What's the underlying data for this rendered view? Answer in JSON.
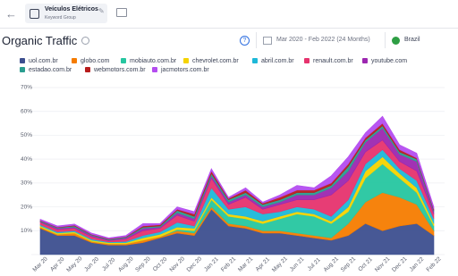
{
  "header": {
    "group_title": "Veículos Elétricos",
    "group_type": "Keyword Group"
  },
  "toolbar": {
    "date_range": "Mar 2020 - Feb 2022 (24 Months)",
    "country": "Brazil"
  },
  "chart_data": {
    "type": "stacked-area",
    "title": "Organic Traffic",
    "categories": [
      "Mar 20",
      "Apr 20",
      "May 20",
      "Jun 20",
      "Jul 20",
      "Aug 20",
      "Sep 20",
      "Oct 20",
      "Nov 20",
      "Dec 20",
      "Jan 21",
      "Feb 21",
      "Mar 21",
      "Apr 21",
      "May 21",
      "Jun 21",
      "Jul 21",
      "Aug 21",
      "Sep 21",
      "Oct 21",
      "Nov 21",
      "Dec 21",
      "Jan 22",
      "Feb 22"
    ],
    "ylim": [
      0,
      70
    ],
    "yticks": [
      {
        "value": 10,
        "label": "10%"
      },
      {
        "value": 20,
        "label": "20%"
      },
      {
        "value": 30,
        "label": "30%"
      },
      {
        "value": 40,
        "label": "40%"
      },
      {
        "value": 50,
        "label": "50%"
      },
      {
        "value": 60,
        "label": "60%"
      },
      {
        "value": 70,
        "label": "70%"
      }
    ],
    "grid": true,
    "series": [
      {
        "name": "uol.com.br",
        "color": "#3d4f8f",
        "values": [
          11,
          8,
          8,
          5,
          4,
          4,
          5,
          7,
          9,
          8,
          19,
          12,
          11,
          9,
          9,
          8,
          7,
          6,
          8,
          13,
          10,
          12,
          13,
          8
        ]
      },
      {
        "name": "globo.com",
        "color": "#f57c00",
        "values": [
          0.5,
          0.5,
          1,
          0.5,
          0.5,
          0.5,
          1,
          0.5,
          1,
          1,
          1,
          1,
          1,
          1,
          1,
          1,
          1,
          1,
          5,
          9,
          16,
          12,
          8,
          2
        ]
      },
      {
        "name": "mobiauto.com.br",
        "color": "#26c6a0",
        "values": [
          0,
          0,
          0,
          0,
          0,
          0,
          0,
          0,
          0.5,
          1,
          3,
          3,
          3,
          3,
          5,
          8,
          8,
          6,
          5,
          10,
          12,
          8,
          5,
          2
        ]
      },
      {
        "name": "chevrolet.com.br",
        "color": "#f5d300",
        "values": [
          0.5,
          0.5,
          0.5,
          0.5,
          0.5,
          0.5,
          1,
          1,
          1,
          1,
          1,
          1,
          1,
          1,
          1,
          1,
          1,
          1,
          2,
          3,
          3,
          2,
          2,
          1
        ]
      },
      {
        "name": "abril.com.br",
        "color": "#1eb8d8",
        "values": [
          0.5,
          0.5,
          0.5,
          0.5,
          0.3,
          0.5,
          1,
          1,
          2,
          1,
          4,
          2,
          4,
          3,
          2,
          2,
          2,
          2,
          3,
          3,
          3,
          2,
          3,
          2
        ]
      },
      {
        "name": "renault.com.br",
        "color": "#e6336e",
        "values": [
          1,
          1,
          1,
          1,
          0.5,
          1,
          2,
          1.5,
          3,
          2,
          4,
          2,
          4,
          2,
          3,
          3,
          4,
          9,
          8,
          5,
          4,
          3,
          4,
          2
        ]
      },
      {
        "name": "youtube.com",
        "color": "#9c27b0",
        "values": [
          0.3,
          0.5,
          0.5,
          0.5,
          0.3,
          0.5,
          1,
          0.5,
          1,
          1,
          1,
          1,
          1,
          1,
          1,
          2,
          2,
          3,
          4,
          4,
          5,
          3,
          4,
          1
        ]
      },
      {
        "name": "estadao.com.br",
        "color": "#2a9d8f",
        "values": [
          0.3,
          0.3,
          0.5,
          0.3,
          0.3,
          0.3,
          0.5,
          0.5,
          1,
          1,
          1,
          1,
          1,
          1,
          1,
          1,
          1,
          1,
          2,
          1,
          1,
          1,
          1,
          0.5
        ]
      },
      {
        "name": "webmotors.com.br",
        "color": "#b71c1c",
        "values": [
          0.2,
          0.2,
          0.3,
          0.2,
          0.2,
          0.2,
          0.5,
          0.5,
          0.5,
          1,
          1,
          0.5,
          1,
          0.5,
          1,
          1,
          1,
          1,
          1,
          1,
          1,
          1,
          0.5,
          0.5
        ]
      },
      {
        "name": "jacmotors.com.br",
        "color": "#b44df0",
        "values": [
          0.5,
          0.5,
          0.5,
          0.5,
          0.4,
          0.5,
          1,
          0.5,
          1,
          1,
          1,
          0.5,
          1,
          0.5,
          1,
          2,
          1,
          3,
          3,
          2,
          3,
          2,
          2,
          1
        ]
      }
    ]
  }
}
